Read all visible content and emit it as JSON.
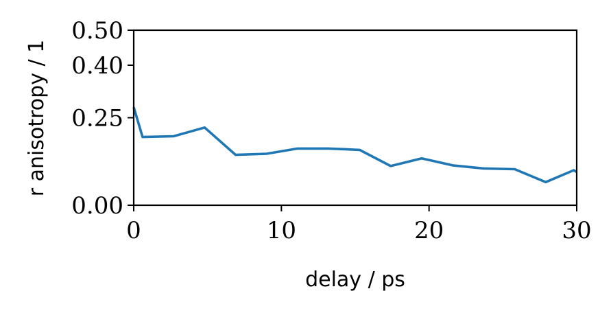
{
  "chart_data": {
    "type": "line",
    "title": "",
    "xlabel": "delay / ps",
    "ylabel": "r anisotropy / 1",
    "xlim": [
      0,
      30
    ],
    "ylim": [
      0,
      0.5
    ],
    "xticks": [
      0,
      10,
      20,
      30
    ],
    "xtick_labels": [
      "0",
      "10",
      "20",
      "30"
    ],
    "yticks": [
      0.0,
      0.25,
      0.4,
      0.5
    ],
    "ytick_labels": [
      "0.00",
      "0.25",
      "0.40",
      "0.50"
    ],
    "grid": false,
    "legend": "none",
    "series": [
      {
        "color": "#1f77b4",
        "x": [
          0.0,
          0.6,
          2.7,
          4.8,
          6.9,
          9.0,
          11.1,
          13.2,
          15.3,
          17.4,
          19.5,
          21.6,
          23.7,
          25.8,
          27.9,
          29.8,
          30.0
        ],
        "y": [
          0.28,
          0.195,
          0.197,
          0.222,
          0.144,
          0.147,
          0.162,
          0.162,
          0.158,
          0.112,
          0.134,
          0.114,
          0.105,
          0.103,
          0.066,
          0.1,
          0.095
        ]
      }
    ]
  }
}
